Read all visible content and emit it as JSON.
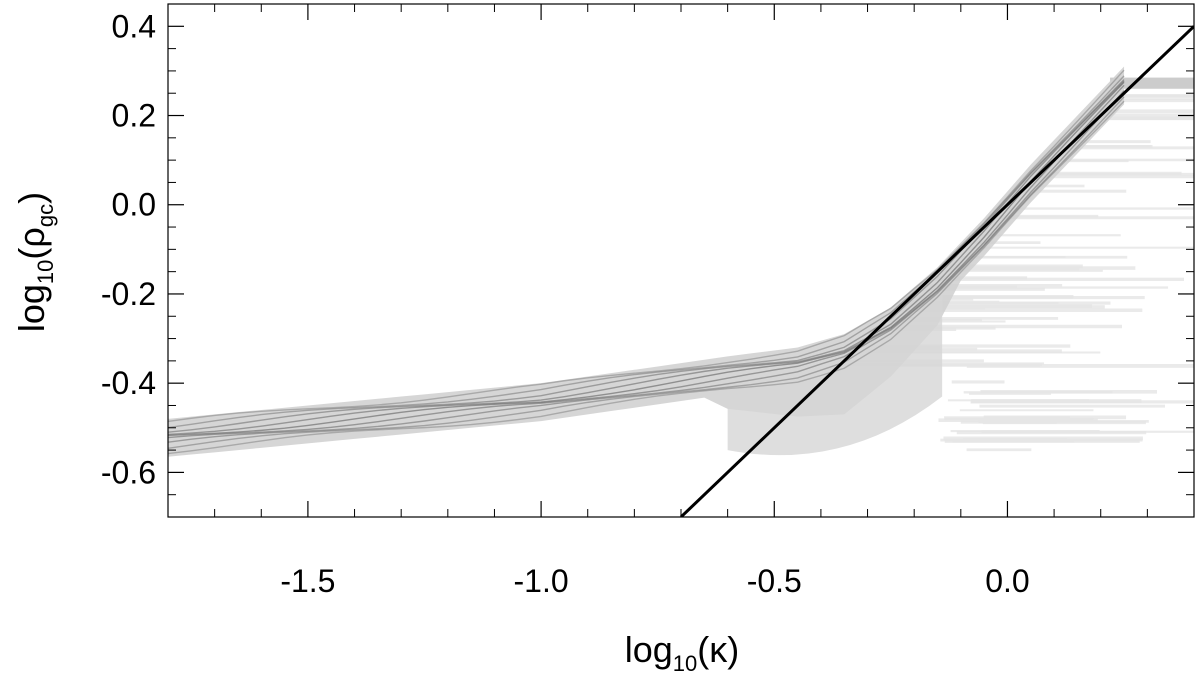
{
  "chart_data": {
    "type": "scatter",
    "xlabel": "log10(κ)",
    "ylabel": "log10(ρgc)",
    "xlabel_parts": {
      "base": "log",
      "sub": "10",
      "arg": "(κ)"
    },
    "ylabel_parts": {
      "base": "log",
      "sub": "10",
      "arg_open": "(ρ",
      "arg_sub": "gc",
      "arg_close": ")"
    },
    "xlim": [
      -1.8,
      0.4
    ],
    "ylim": [
      -0.7,
      0.45
    ],
    "x_ticks": [
      -1.5,
      -1.0,
      -0.5,
      0.0
    ],
    "x_tick_labels": [
      "-1.5",
      "-1.0",
      "-0.5",
      "0.0"
    ],
    "y_ticks": [
      0.4,
      0.2,
      0.0,
      -0.2,
      -0.4,
      -0.6
    ],
    "y_tick_labels": [
      "0.4",
      "0.2",
      "0.0",
      "-0.2",
      "-0.4",
      "-0.6"
    ],
    "reference_line": {
      "x": [
        -0.7,
        0.4
      ],
      "y": [
        -0.7,
        0.4
      ],
      "color": "#000000"
    },
    "density_ridge": {
      "x": [
        -1.8,
        -1.5,
        -1.2,
        -1.0,
        -0.8,
        -0.6,
        -0.45,
        -0.35,
        -0.25,
        -0.15,
        -0.05,
        0.05,
        0.15,
        0.25
      ],
      "y": [
        -0.52,
        -0.49,
        -0.46,
        -0.44,
        -0.41,
        -0.38,
        -0.36,
        -0.33,
        -0.27,
        -0.18,
        -0.07,
        0.05,
        0.16,
        0.27
      ]
    },
    "grid": false,
    "colors": {
      "density": "#555555",
      "fill_light": "#cfcfcf",
      "streaks": "#e6e6e6",
      "line": "#000000"
    }
  }
}
